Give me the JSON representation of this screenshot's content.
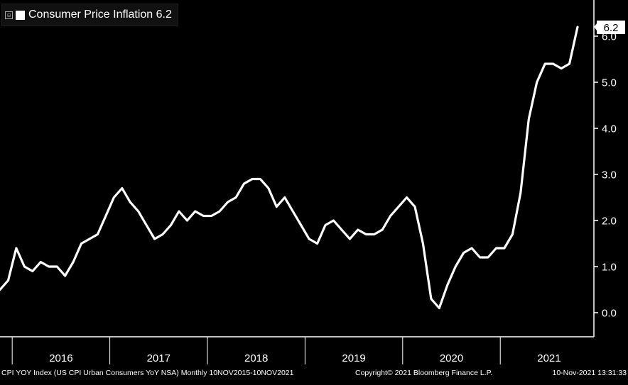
{
  "legend": {
    "toggle_glyph": "⊟",
    "label": "Consumer Price Inflation",
    "last_value": "6.2"
  },
  "footer": {
    "source": "CPI YOY Index (US CPI Urban Consumers YoY NSA)  Monthly 10NOV2015-10NOV2021",
    "copyright": "Copyright© 2021 Bloomberg Finance L.P.",
    "timestamp": "10-Nov-2021 13:31:33"
  },
  "colors": {
    "background": "#000000",
    "line": "#ffffff",
    "axis": "#ffffff",
    "footer_text": "#ffffff"
  },
  "chart_data": {
    "type": "line",
    "title": "",
    "xlabel": "",
    "ylabel": "",
    "ylim": [
      -0.5,
      6.6
    ],
    "yticks": [
      "0.0",
      "1.0",
      "2.0",
      "3.0",
      "4.0",
      "5.0",
      "6.0"
    ],
    "ytick_values": [
      0,
      1,
      2,
      3,
      4,
      5,
      6
    ],
    "x_categories": [
      "2016",
      "2017",
      "2018",
      "2019",
      "2020",
      "2021"
    ],
    "last_value_label": "6.2",
    "grid": false,
    "legend_position": "top-left",
    "series": [
      {
        "name": "Consumer Price Inflation",
        "x": [
          "2015-11",
          "2015-12",
          "2016-01",
          "2016-02",
          "2016-03",
          "2016-04",
          "2016-05",
          "2016-06",
          "2016-07",
          "2016-08",
          "2016-09",
          "2016-10",
          "2016-11",
          "2016-12",
          "2017-01",
          "2017-02",
          "2017-03",
          "2017-04",
          "2017-05",
          "2017-06",
          "2017-07",
          "2017-08",
          "2017-09",
          "2017-10",
          "2017-11",
          "2017-12",
          "2018-01",
          "2018-02",
          "2018-03",
          "2018-04",
          "2018-05",
          "2018-06",
          "2018-07",
          "2018-08",
          "2018-09",
          "2018-10",
          "2018-11",
          "2018-12",
          "2019-01",
          "2019-02",
          "2019-03",
          "2019-04",
          "2019-05",
          "2019-06",
          "2019-07",
          "2019-08",
          "2019-09",
          "2019-10",
          "2019-11",
          "2019-12",
          "2020-01",
          "2020-02",
          "2020-03",
          "2020-04",
          "2020-05",
          "2020-06",
          "2020-07",
          "2020-08",
          "2020-09",
          "2020-10",
          "2020-11",
          "2020-12",
          "2021-01",
          "2021-02",
          "2021-03",
          "2021-04",
          "2021-05",
          "2021-06",
          "2021-07",
          "2021-08",
          "2021-09",
          "2021-10"
        ],
        "values": [
          0.5,
          0.7,
          1.4,
          1.0,
          0.9,
          1.1,
          1.0,
          1.0,
          0.8,
          1.1,
          1.5,
          1.6,
          1.7,
          2.1,
          2.5,
          2.7,
          2.4,
          2.2,
          1.9,
          1.6,
          1.7,
          1.9,
          2.2,
          2.0,
          2.2,
          2.1,
          2.1,
          2.2,
          2.4,
          2.5,
          2.8,
          2.9,
          2.9,
          2.7,
          2.3,
          2.5,
          2.2,
          1.9,
          1.6,
          1.5,
          1.9,
          2.0,
          1.8,
          1.6,
          1.8,
          1.7,
          1.7,
          1.8,
          2.1,
          2.3,
          2.5,
          2.3,
          1.5,
          0.3,
          0.1,
          0.6,
          1.0,
          1.3,
          1.4,
          1.2,
          1.2,
          1.4,
          1.4,
          1.7,
          2.6,
          4.2,
          5.0,
          5.4,
          5.4,
          5.3,
          5.4,
          6.2
        ]
      }
    ]
  }
}
